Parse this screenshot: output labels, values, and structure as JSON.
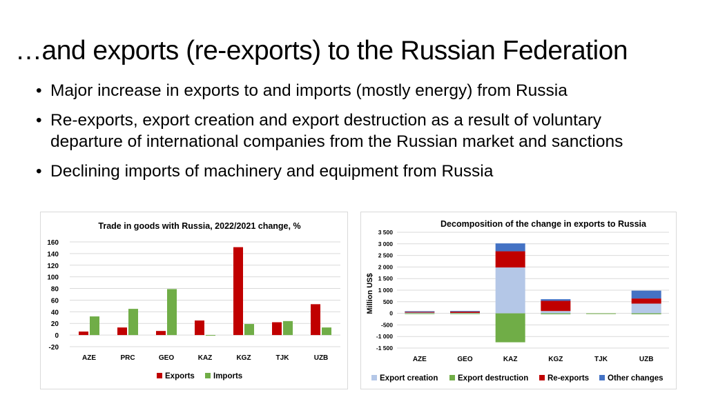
{
  "page": {
    "title": "…and exports (re-exports) to the Russian Federation",
    "bullets": [
      "Major increase in exports to and imports (mostly energy) from Russia",
      "Re-exports, export creation and export destruction as a result of voluntary departure of international companies from the Russian market and sanctions",
      "Declining imports of machinery and equipment from Russia"
    ],
    "bullet_icon": "bullet-dot-icon"
  },
  "chart_data": [
    {
      "type": "bar",
      "title": "Trade in goods with Russia, 2022/2021 change, %",
      "categories": [
        "AZE",
        "PRC",
        "GEO",
        "KAZ",
        "KGZ",
        "TJK",
        "UZB"
      ],
      "series": [
        {
          "name": "Exports",
          "color": "#c00000",
          "values": [
            6,
            13,
            7,
            25,
            151,
            22,
            53
          ]
        },
        {
          "name": "Imports",
          "color": "#70ad47",
          "values": [
            32,
            45,
            79,
            -1,
            19,
            24,
            13
          ]
        }
      ],
      "ylim": [
        -20,
        160
      ],
      "yticks": [
        "160",
        "140",
        "120",
        "100",
        "80",
        "60",
        "40",
        "20",
        "0",
        "-20"
      ],
      "ytick_values": [
        160,
        140,
        120,
        100,
        80,
        60,
        40,
        20,
        0,
        -20
      ],
      "grid": true,
      "legend": "bottom"
    },
    {
      "type": "bar",
      "stacked": true,
      "title": "Decomposition of the change in exports to Russia",
      "ylabel": "Million US$",
      "categories": [
        "AZE",
        "GEO",
        "KAZ",
        "KGZ",
        "TJK",
        "UZB"
      ],
      "series": [
        {
          "name": "Export creation",
          "color": "#b4c7e7",
          "values": [
            30,
            20,
            1980,
            100,
            0,
            420
          ]
        },
        {
          "name": "Export destruction",
          "color": "#70ad47",
          "values": [
            -20,
            -20,
            -1250,
            -40,
            -10,
            -40
          ]
        },
        {
          "name": "Re-exports",
          "color": "#c00000",
          "values": [
            50,
            70,
            700,
            440,
            0,
            220
          ]
        },
        {
          "name": "Other changes",
          "color": "#4472c4",
          "values": [
            10,
            10,
            340,
            70,
            0,
            340
          ]
        }
      ],
      "ylim": [
        -1500,
        3500
      ],
      "yticks": [
        "3 500",
        "3 000",
        "2 500",
        "2 000",
        "1 500",
        "1 000",
        "500",
        "0",
        "-500",
        "-1 000",
        "-1 500"
      ],
      "ytick_values": [
        3500,
        3000,
        2500,
        2000,
        1500,
        1000,
        500,
        0,
        -500,
        -1000,
        -1500
      ],
      "grid": true,
      "legend": "bottom"
    }
  ]
}
